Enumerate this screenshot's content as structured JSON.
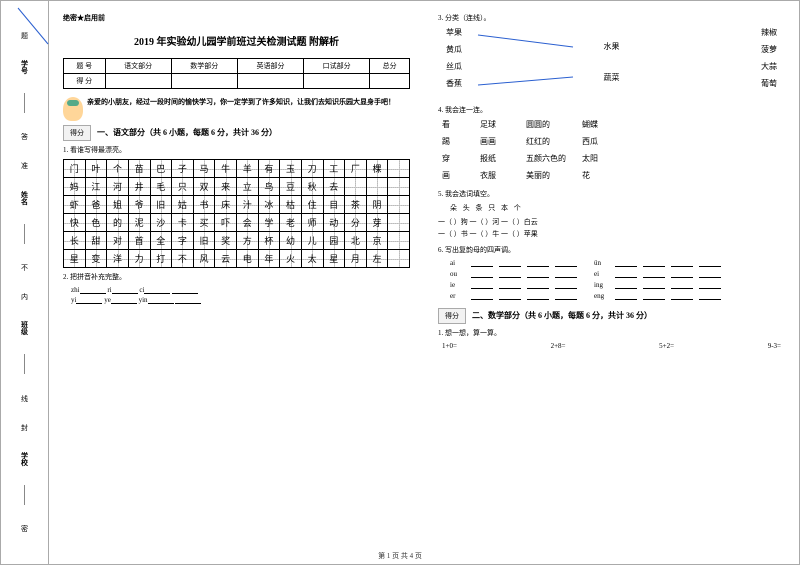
{
  "gutter": {
    "labels": [
      "学号",
      "姓名",
      "班级",
      "学校"
    ],
    "marks": [
      "题",
      "答",
      "准",
      "不",
      "内",
      "线",
      "封",
      "密"
    ]
  },
  "header_secret": "绝密★启用前",
  "title": "2019 年实验幼儿园学前班过关检测试题 附解析",
  "score_table": {
    "row1": [
      "题  号",
      "语文部分",
      "数学部分",
      "英语部分",
      "口试部分",
      "总分"
    ],
    "row2_label": "得  分"
  },
  "intro": "亲爱的小朋友，经过一段时间的愉快学习，你一定学到了许多知识，让我们去知识乐园大显身手吧！",
  "score_box_label": "得分",
  "section1_heading": "一、语文部分（共 6 小题，每题 6 分，共计 36 分）",
  "q1_label": "1. 看谁写得最漂亮。",
  "char_rows": [
    [
      "门",
      "叶",
      "个",
      "苗",
      "巴",
      "子",
      "马",
      "牛",
      "羊",
      "有",
      "玉",
      "刀",
      "工",
      "厂",
      "棵",
      ""
    ],
    [
      "妈",
      "江",
      "河",
      "井",
      "毛",
      "只",
      "双",
      "来",
      "立",
      "鸟",
      "豆",
      "秋",
      "去",
      "",
      "",
      ""
    ],
    [
      "虾",
      "爸",
      "姐",
      "爷",
      "旧",
      "姑",
      "书",
      "床",
      "汁",
      "冰",
      "枯",
      "住",
      "目",
      "茶",
      "阴",
      ""
    ],
    [
      "快",
      "色",
      "的",
      "泥",
      "沙",
      "卡",
      "买",
      "吓",
      "会",
      "学",
      "老",
      "师",
      "动",
      "分",
      "芽",
      ""
    ],
    [
      "长",
      "甜",
      "对",
      "首",
      "全",
      "字",
      "旧",
      "奖",
      "方",
      "杯",
      "幼",
      "儿",
      "园",
      "北",
      "京",
      ""
    ],
    [
      "星",
      "变",
      "洋",
      "力",
      "打",
      "不",
      "风",
      "云",
      "电",
      "年",
      "火",
      "太",
      "星",
      "月",
      "左",
      ""
    ]
  ],
  "q2_label": "2. 把拼音补充完整。",
  "pinyin_rows": [
    [
      "zhi",
      "ri",
      "ci",
      ""
    ],
    [
      "yi",
      "ye",
      "yin",
      ""
    ]
  ],
  "q3_label": "3. 分类（连线）。",
  "q3_left": [
    "苹果",
    "黄瓜",
    "丝瓜",
    "香蕉"
  ],
  "q3_center": [
    "水果",
    "蔬菜"
  ],
  "q3_right": [
    "辣椒",
    "菠萝",
    "大蒜",
    "葡萄"
  ],
  "q4_label": "4. 我会连一连。",
  "q4_pairs_left": [
    [
      "看",
      "足球"
    ],
    [
      "踢",
      "画画"
    ],
    [
      "穿",
      "报纸"
    ],
    [
      "画",
      "衣服"
    ]
  ],
  "q4_pairs_right": [
    [
      "圆圆的",
      "蝴蝶"
    ],
    [
      "红红的",
      "西瓜"
    ],
    [
      "五颜六色的",
      "太阳"
    ],
    [
      "美丽的",
      "花"
    ]
  ],
  "q5_label": "5. 我会选词填空。",
  "q5_options": "朵  头  条  只  本  个",
  "q5_lines": [
    "一（    ）狗    一（    ）河    一（    ）白云",
    "一（    ）书    一（    ）牛    一（    ）苹果"
  ],
  "q6_label": "6. 写出复韵母的四声调。",
  "q6_rows": [
    [
      "ai",
      "ün"
    ],
    [
      "ou",
      "ei"
    ],
    [
      "ie",
      "ing"
    ],
    [
      "er",
      "eng"
    ]
  ],
  "section2_heading": "二、数学部分（共 6 小题，每题 6 分，共计 36 分）",
  "math_q1": "1. 想一想，算一算。",
  "math_items": [
    "1+0=",
    "2+8=",
    "5+2=",
    "9-3="
  ],
  "footer": "第 1 页 共 4 页",
  "colors": {
    "accent_line": "#2a5fd0",
    "grid_guide": "#cccccc"
  }
}
